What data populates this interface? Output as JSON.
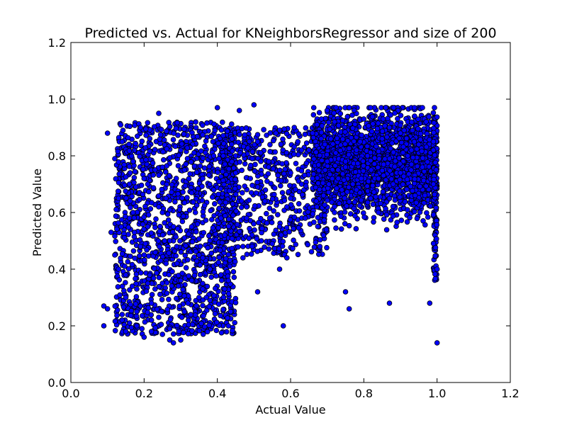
{
  "chart_data": {
    "type": "scatter",
    "title": "Predicted vs. Actual for KNeighborsRegressor and size of 200",
    "xlabel": "Actual Value",
    "ylabel": "Predicted Value",
    "xlim": [
      0.0,
      1.2
    ],
    "ylim": [
      0.0,
      1.2
    ],
    "x_ticks": [
      "0.0",
      "0.2",
      "0.4",
      "0.6",
      "0.8",
      "1.0",
      "1.2"
    ],
    "y_ticks": [
      "0.0",
      "0.2",
      "0.4",
      "0.6",
      "0.8",
      "1.0",
      "1.2"
    ],
    "grid": false,
    "legend": "none",
    "marker_color": "#0000ff",
    "marker_edge_color": "#000000",
    "series": [
      {
        "x": [
          0.09,
          0.1,
          0.12,
          0.13,
          0.14,
          0.15,
          0.16,
          0.17,
          0.18,
          0.19,
          0.2,
          0.21,
          0.22,
          0.23,
          0.24,
          0.25,
          0.26,
          0.27,
          0.28,
          0.3,
          0.32,
          0.34,
          0.36,
          0.38,
          0.4,
          0.42,
          0.44,
          0.46,
          0.48,
          0.5,
          0.52,
          0.54,
          0.56,
          0.58,
          0.6,
          0.62,
          0.64,
          0.66,
          0.68,
          0.7,
          0.72,
          0.74,
          0.76,
          0.78,
          0.8,
          0.82,
          0.84,
          0.86,
          0.88,
          0.9,
          0.92,
          0.94,
          0.96,
          0.98,
          1.0,
          0.09,
          0.11,
          0.13,
          0.15,
          0.17,
          0.19,
          0.21,
          0.23,
          0.25,
          0.27,
          0.29,
          0.31,
          0.33,
          0.35,
          0.37,
          0.39,
          0.41,
          0.43,
          0.45,
          0.47,
          0.49,
          0.51,
          0.53,
          0.55,
          0.57,
          0.59,
          0.61,
          0.63,
          0.65,
          0.67,
          0.69,
          0.71,
          0.73,
          0.75,
          0.77,
          0.79,
          0.81,
          0.83,
          0.85,
          0.87,
          0.89,
          0.91,
          0.93,
          0.95,
          0.97,
          0.99,
          0.12,
          0.14,
          0.16,
          0.18,
          0.2,
          0.22,
          0.24,
          0.26,
          0.28,
          0.3,
          0.33,
          0.36,
          0.39,
          0.42,
          0.45,
          0.48,
          0.51,
          0.54,
          0.57,
          0.6,
          0.63,
          0.66,
          0.69,
          0.72,
          0.75,
          0.78,
          0.81,
          0.84,
          0.87,
          0.9,
          0.93,
          0.96,
          0.99,
          0.1,
          0.15,
          0.2,
          0.25,
          0.3,
          0.35,
          0.43,
          0.59,
          0.75,
          0.87,
          0.99,
          1.0,
          0.51,
          0.41,
          0.47,
          0.28,
          0.22,
          0.18,
          0.14,
          0.31,
          0.27,
          0.24,
          0.33,
          0.19,
          0.16,
          0.38,
          0.36,
          0.21
        ],
        "y": [
          0.2,
          0.88,
          0.79,
          0.4,
          0.85,
          0.3,
          0.7,
          0.6,
          0.25,
          0.9,
          0.45,
          0.55,
          0.18,
          0.75,
          0.95,
          0.35,
          0.65,
          0.15,
          0.5,
          0.82,
          0.28,
          0.6,
          0.72,
          0.4,
          0.97,
          0.33,
          0.86,
          0.96,
          0.62,
          0.98,
          0.5,
          0.76,
          0.88,
          0.2,
          0.65,
          0.85,
          0.58,
          0.72,
          0.48,
          0.78,
          0.92,
          0.68,
          0.26,
          0.82,
          0.93,
          0.75,
          0.6,
          0.97,
          0.7,
          0.88,
          0.8,
          0.66,
          0.97,
          0.28,
          0.14,
          0.27,
          0.53,
          0.65,
          0.38,
          0.78,
          0.48,
          0.7,
          0.33,
          0.6,
          0.5,
          0.42,
          0.75,
          0.55,
          0.45,
          0.3,
          0.68,
          0.58,
          0.36,
          0.8,
          0.48,
          0.72,
          0.85,
          0.64,
          0.49,
          0.55,
          0.62,
          0.9,
          0.7,
          0.82,
          0.64,
          0.52,
          0.86,
          0.72,
          0.78,
          0.7,
          0.85,
          0.8,
          0.72,
          0.86,
          0.79,
          0.74,
          0.89,
          0.77,
          0.84,
          0.92,
          0.85,
          0.45,
          0.22,
          0.58,
          0.33,
          0.72,
          0.28,
          0.62,
          0.42,
          0.55,
          0.36,
          0.67,
          0.44,
          0.8,
          0.52,
          0.74,
          0.58,
          0.69,
          0.78,
          0.4,
          0.74,
          0.82,
          0.88,
          0.66,
          0.6,
          0.76,
          0.68,
          0.8,
          0.72,
          0.9,
          0.74,
          0.82,
          0.76,
          0.7,
          0.26,
          0.18,
          0.16,
          0.17,
          0.15,
          0.3,
          0.2,
          0.44,
          0.32,
          0.28,
          0.82,
          0.4,
          0.32,
          0.38,
          0.44,
          0.14,
          0.22,
          0.2,
          0.24,
          0.25,
          0.19,
          0.23,
          0.36,
          0.27,
          0.21,
          0.29,
          0.33,
          0.35
        ]
      }
    ]
  }
}
